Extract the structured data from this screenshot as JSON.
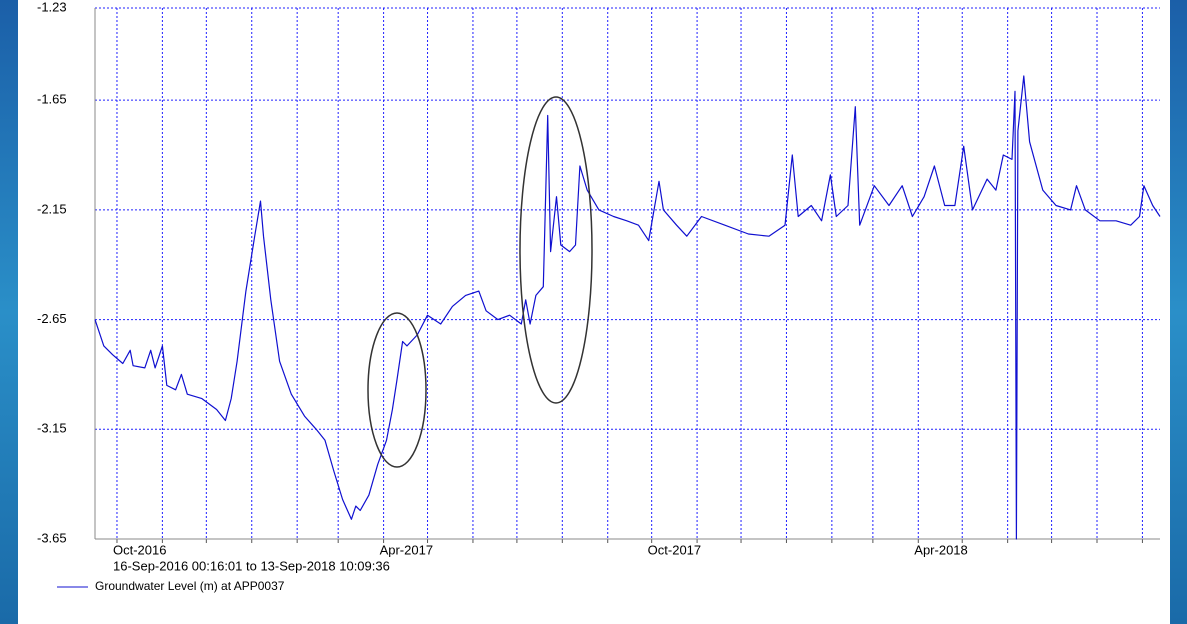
{
  "chart_data": {
    "type": "line",
    "subtitle": "16-Sep-2016 00:16:01 to 13-Sep-2018 10:09:36",
    "x": [
      "2016-09-16",
      "2016-09-22",
      "2016-09-28",
      "2016-10-05",
      "2016-10-10",
      "2016-10-12",
      "2016-10-20",
      "2016-10-24",
      "2016-10-27",
      "2016-11-01",
      "2016-11-04",
      "2016-11-10",
      "2016-11-14",
      "2016-11-18",
      "2016-11-28",
      "2016-12-08",
      "2016-12-14",
      "2016-12-18",
      "2016-12-22",
      "2016-12-28",
      "2017-01-03",
      "2017-01-07",
      "2017-01-09",
      "2017-01-14",
      "2017-01-20",
      "2017-01-28",
      "2017-02-06",
      "2017-02-14",
      "2017-02-20",
      "2017-02-26",
      "2017-03-04",
      "2017-03-10",
      "2017-03-13",
      "2017-03-16",
      "2017-03-22",
      "2017-03-28",
      "2017-04-03",
      "2017-04-07",
      "2017-04-10",
      "2017-04-14",
      "2017-04-17",
      "2017-04-24",
      "2017-05-01",
      "2017-05-10",
      "2017-05-18",
      "2017-05-27",
      "2017-06-05",
      "2017-06-10",
      "2017-06-18",
      "2017-06-26",
      "2017-07-04",
      "2017-07-07",
      "2017-07-10",
      "2017-07-14",
      "2017-07-19",
      "2017-07-22",
      "2017-07-24",
      "2017-07-28",
      "2017-07-31",
      "2017-08-06",
      "2017-08-10",
      "2017-08-13",
      "2017-08-18",
      "2017-08-26",
      "2017-09-05",
      "2017-09-14",
      "2017-09-22",
      "2017-09-29",
      "2017-10-06",
      "2017-10-09",
      "2017-10-18",
      "2017-10-25",
      "2017-11-04",
      "2017-11-20",
      "2017-12-06",
      "2017-12-20",
      "2017-12-31",
      "2018-01-05",
      "2018-01-09",
      "2018-01-18",
      "2018-01-25",
      "2018-01-31",
      "2018-02-04",
      "2018-02-12",
      "2018-02-17",
      "2018-02-20",
      "2018-03-02",
      "2018-03-12",
      "2018-03-21",
      "2018-03-28",
      "2018-04-05",
      "2018-04-12",
      "2018-04-19",
      "2018-04-26",
      "2018-05-02",
      "2018-05-08",
      "2018-05-18",
      "2018-05-24",
      "2018-05-29",
      "2018-06-04",
      "2018-06-06",
      "2018-06-07",
      "2018-06-08",
      "2018-06-12",
      "2018-06-16",
      "2018-06-25",
      "2018-07-04",
      "2018-07-14",
      "2018-07-18",
      "2018-07-24",
      "2018-08-03",
      "2018-08-14",
      "2018-08-24",
      "2018-08-30",
      "2018-09-02",
      "2018-09-08",
      "2018-09-13"
    ],
    "series": [
      {
        "name": "Groundwater Level (m) at APP0037",
        "color": "#1010d0",
        "values": [
          -2.65,
          -2.77,
          -2.81,
          -2.85,
          -2.79,
          -2.86,
          -2.87,
          -2.79,
          -2.87,
          -2.77,
          -2.95,
          -2.97,
          -2.9,
          -2.99,
          -3.01,
          -3.06,
          -3.11,
          -3.01,
          -2.84,
          -2.52,
          -2.27,
          -2.11,
          -2.27,
          -2.56,
          -2.84,
          -2.99,
          -3.09,
          -3.15,
          -3.2,
          -3.34,
          -3.47,
          -3.56,
          -3.5,
          -3.52,
          -3.45,
          -3.31,
          -3.2,
          -3.06,
          -2.93,
          -2.75,
          -2.77,
          -2.72,
          -2.63,
          -2.67,
          -2.59,
          -2.54,
          -2.52,
          -2.61,
          -2.65,
          -2.63,
          -2.67,
          -2.56,
          -2.67,
          -2.54,
          -2.5,
          -1.72,
          -2.34,
          -2.09,
          -2.31,
          -2.34,
          -2.31,
          -1.95,
          -2.06,
          -2.15,
          -2.18,
          -2.2,
          -2.22,
          -2.29,
          -2.02,
          -2.15,
          -2.22,
          -2.27,
          -2.18,
          -2.22,
          -2.26,
          -2.27,
          -2.22,
          -1.9,
          -2.18,
          -2.13,
          -2.2,
          -1.99,
          -2.18,
          -2.13,
          -1.68,
          -2.22,
          -2.04,
          -2.13,
          -2.04,
          -2.18,
          -2.09,
          -1.95,
          -2.13,
          -2.13,
          -1.86,
          -2.15,
          -2.01,
          -2.06,
          -1.9,
          -1.92,
          -1.61,
          -3.65,
          -1.79,
          -1.54,
          -1.84,
          -2.06,
          -2.13,
          -2.15,
          -2.04,
          -2.15,
          -2.2,
          -2.2,
          -2.22,
          -2.18,
          -2.04,
          -2.13,
          -2.18
        ]
      }
    ],
    "xlim": [
      "2016-09-16",
      "2018-09-13"
    ],
    "xticks": [
      {
        "value": "2016-10-01",
        "label": "Oct-2016"
      },
      {
        "value": "2016-11-01",
        "label": null
      },
      {
        "value": "2016-12-01",
        "label": null
      },
      {
        "value": "2017-01-01",
        "label": null
      },
      {
        "value": "2017-02-01",
        "label": null
      },
      {
        "value": "2017-03-01",
        "label": null
      },
      {
        "value": "2017-04-01",
        "label": "Apr-2017"
      },
      {
        "value": "2017-05-01",
        "label": null
      },
      {
        "value": "2017-06-01",
        "label": null
      },
      {
        "value": "2017-07-01",
        "label": null
      },
      {
        "value": "2017-08-01",
        "label": null
      },
      {
        "value": "2017-09-01",
        "label": null
      },
      {
        "value": "2017-10-01",
        "label": "Oct-2017"
      },
      {
        "value": "2017-11-01",
        "label": null
      },
      {
        "value": "2017-12-01",
        "label": null
      },
      {
        "value": "2018-01-01",
        "label": null
      },
      {
        "value": "2018-02-01",
        "label": null
      },
      {
        "value": "2018-03-01",
        "label": null
      },
      {
        "value": "2018-04-01",
        "label": "Apr-2018"
      },
      {
        "value": "2018-05-01",
        "label": null
      },
      {
        "value": "2018-06-01",
        "label": null
      },
      {
        "value": "2018-07-01",
        "label": null
      },
      {
        "value": "2018-08-01",
        "label": null
      },
      {
        "value": "2018-09-01",
        "label": null
      }
    ],
    "ylim": [
      -3.65,
      -1.23
    ],
    "yticks": [
      -3.65,
      -3.15,
      -2.65,
      -2.15,
      -1.65,
      -1.23
    ],
    "grid": true
  }
}
